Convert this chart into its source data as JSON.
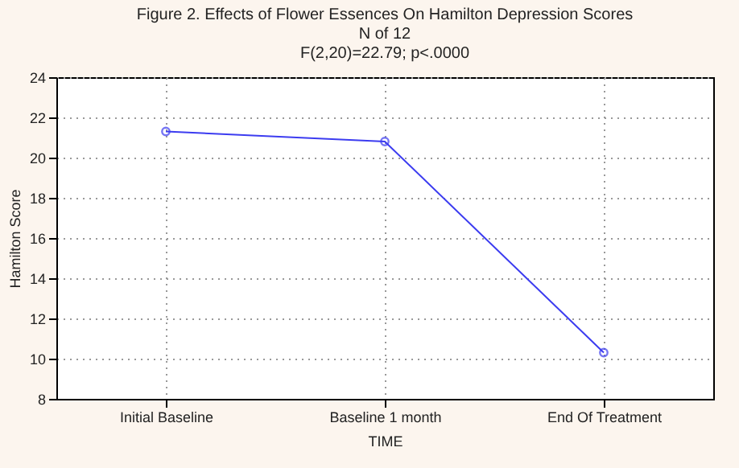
{
  "chart_data": {
    "type": "line",
    "title": "Figure 2. Effects of Flower Essences On Hamilton Depression Scores",
    "subtitle": "N of 12",
    "annotations": [
      "F(2,20)=22.79; p<.0000"
    ],
    "xlabel": "TIME",
    "ylabel": "Hamilton Score",
    "categories": [
      "Initial Baseline",
      "Baseline 1 month",
      "End Of Treatment"
    ],
    "series": [
      {
        "color": "#3c3cf0",
        "values": [
          21.3,
          20.8,
          10.3
        ]
      }
    ],
    "ylim": [
      8,
      24
    ],
    "yticks": [
      8,
      10,
      12,
      14,
      16,
      18,
      20,
      22,
      24
    ],
    "grid": true,
    "marker": "circle",
    "line_style": "solid"
  }
}
